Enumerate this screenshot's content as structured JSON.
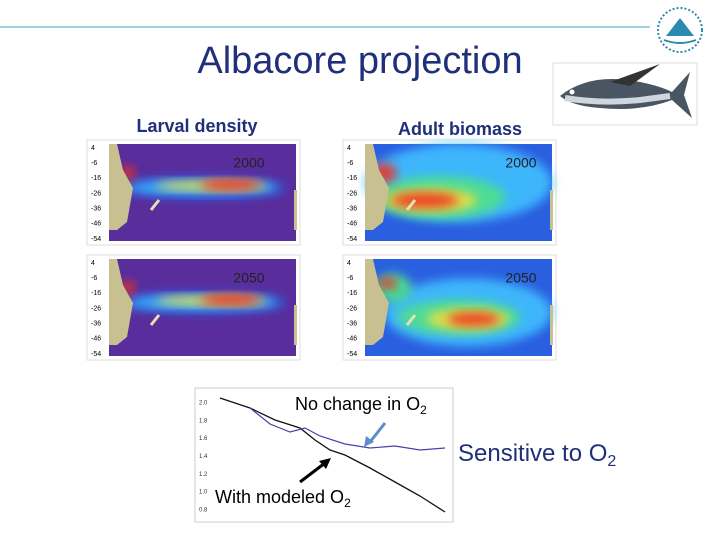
{
  "header": {
    "title": "Albacore projection"
  },
  "panels": {
    "larval_label": "Larval density",
    "adult_label": "Adult biomass",
    "years": [
      "2000",
      "2050"
    ],
    "lat_ticks": [
      "4",
      "-6",
      "-16",
      "-26",
      "-36",
      "-46",
      "-54"
    ]
  },
  "inset": {
    "yticks": [
      "2.0",
      "1.8",
      "1.6",
      "1.4",
      "1.2",
      "1.0",
      "0.8"
    ],
    "no_change": "No change in O",
    "with_o2": "With modeled O",
    "subscript": "2",
    "sensitive": "Sensitive to O"
  }
}
